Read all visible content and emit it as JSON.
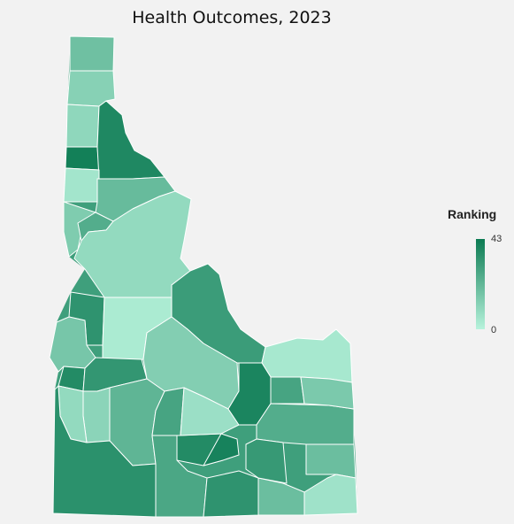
{
  "title": "Health Outcomes, 2023",
  "legend": {
    "title": "Ranking",
    "min_label": "0",
    "max_label": "43",
    "color_min": "#b7f3dc",
    "color_max": "#0b7a52"
  },
  "colors": {
    "background": "#f2f2f2",
    "border": "#ffffff"
  },
  "regions": [
    {
      "id": "boundary",
      "rank": 30
    },
    {
      "id": "r1",
      "rank": 18
    },
    {
      "id": "r2",
      "rank": 12
    },
    {
      "id": "r3",
      "rank": 10
    },
    {
      "id": "r4",
      "rank": 41
    },
    {
      "id": "r5",
      "rank": 38
    },
    {
      "id": "r6",
      "rank": 5
    },
    {
      "id": "r7",
      "rank": 20
    },
    {
      "id": "r8",
      "rank": 14
    },
    {
      "id": "r9",
      "rank": 25
    },
    {
      "id": "r10",
      "rank": 9
    },
    {
      "id": "r11",
      "rank": 34
    },
    {
      "id": "r12",
      "rank": 3
    },
    {
      "id": "r13",
      "rank": 31
    },
    {
      "id": "r14",
      "rank": 16
    },
    {
      "id": "r15",
      "rank": 37
    },
    {
      "id": "r16",
      "rank": 33
    },
    {
      "id": "r17",
      "rank": 13
    },
    {
      "id": "r18",
      "rank": 4
    },
    {
      "id": "r19",
      "rank": 11
    },
    {
      "id": "r20",
      "rank": 9
    },
    {
      "id": "r21",
      "rank": 22
    },
    {
      "id": "r22",
      "rank": 35
    },
    {
      "id": "r23",
      "rank": 37
    },
    {
      "id": "r24",
      "rank": 28
    },
    {
      "id": "r25",
      "rank": 7
    },
    {
      "id": "r26",
      "rank": 27
    },
    {
      "id": "r27",
      "rank": 40
    },
    {
      "id": "r28",
      "rank": 34
    },
    {
      "id": "r29",
      "rank": 19
    },
    {
      "id": "r30",
      "rank": 39
    },
    {
      "id": "r31",
      "rank": 28
    },
    {
      "id": "r32",
      "rank": 25
    },
    {
      "id": "r33",
      "rank": 32
    },
    {
      "id": "r34",
      "rank": 19
    },
    {
      "id": "r35",
      "rank": 15
    },
    {
      "id": "r36",
      "rank": 6
    }
  ]
}
